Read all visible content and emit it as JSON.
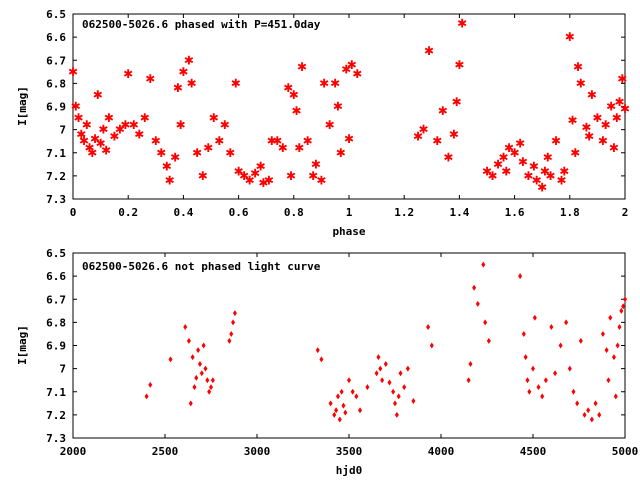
{
  "chart_data": [
    {
      "type": "scatter",
      "title": "062500-5026.6 phased with P=451.0day",
      "xlabel": "phase",
      "ylabel": "I[mag]",
      "xlim": [
        0,
        2
      ],
      "ylim": [
        6.5,
        7.3
      ],
      "y_inverted": true,
      "x_ticks": [
        "0",
        "0.2",
        "0.4",
        "0.6",
        "0.8",
        "1",
        "1.2",
        "1.4",
        "1.6",
        "1.8",
        "2"
      ],
      "y_ticks": [
        "6.5",
        "6.6",
        "6.7",
        "6.8",
        "6.9",
        "7",
        "7.1",
        "7.2",
        "7.3"
      ],
      "marker_color": "#ff0000",
      "marker": "star",
      "series": [
        {
          "points": [
            [
              0.0,
              6.75
            ],
            [
              0.01,
              6.9
            ],
            [
              0.02,
              6.95
            ],
            [
              0.03,
              7.02
            ],
            [
              0.04,
              7.05
            ],
            [
              0.05,
              6.98
            ],
            [
              0.06,
              7.08
            ],
            [
              0.07,
              7.1
            ],
            [
              0.08,
              7.04
            ],
            [
              0.09,
              6.85
            ],
            [
              0.1,
              7.06
            ],
            [
              0.11,
              7.0
            ],
            [
              0.12,
              7.09
            ],
            [
              0.13,
              6.95
            ],
            [
              0.15,
              7.03
            ],
            [
              0.17,
              7.0
            ],
            [
              0.19,
              6.98
            ],
            [
              0.2,
              6.76
            ],
            [
              0.22,
              6.98
            ],
            [
              0.24,
              7.02
            ],
            [
              0.26,
              6.95
            ],
            [
              0.28,
              6.78
            ],
            [
              0.3,
              7.05
            ],
            [
              0.32,
              7.1
            ],
            [
              0.34,
              7.16
            ],
            [
              0.35,
              7.22
            ],
            [
              0.37,
              7.12
            ],
            [
              0.38,
              6.82
            ],
            [
              0.39,
              6.98
            ],
            [
              0.4,
              6.75
            ],
            [
              0.42,
              6.7
            ],
            [
              0.43,
              6.8
            ],
            [
              0.45,
              7.1
            ],
            [
              0.47,
              7.2
            ],
            [
              0.49,
              7.08
            ],
            [
              0.51,
              6.95
            ],
            [
              0.53,
              7.05
            ],
            [
              0.55,
              6.98
            ],
            [
              0.57,
              7.1
            ],
            [
              0.59,
              6.8
            ],
            [
              0.6,
              7.18
            ],
            [
              0.62,
              7.2
            ],
            [
              0.64,
              7.22
            ],
            [
              0.66,
              7.19
            ],
            [
              0.68,
              7.16
            ],
            [
              0.69,
              7.23
            ],
            [
              0.71,
              7.22
            ],
            [
              0.72,
              7.05
            ],
            [
              0.74,
              7.05
            ],
            [
              0.76,
              7.08
            ],
            [
              0.78,
              6.82
            ],
            [
              0.79,
              7.2
            ],
            [
              0.8,
              6.85
            ],
            [
              0.81,
              6.92
            ],
            [
              0.82,
              7.08
            ],
            [
              0.83,
              6.73
            ],
            [
              0.85,
              7.05
            ],
            [
              0.87,
              7.2
            ],
            [
              0.88,
              7.15
            ],
            [
              0.9,
              7.22
            ],
            [
              0.91,
              6.8
            ],
            [
              0.93,
              6.98
            ],
            [
              0.95,
              6.8
            ],
            [
              0.96,
              6.9
            ],
            [
              0.97,
              7.1
            ],
            [
              0.99,
              6.74
            ],
            [
              1.0,
              7.04
            ],
            [
              1.01,
              6.72
            ],
            [
              1.03,
              6.76
            ],
            [
              1.25,
              7.03
            ],
            [
              1.27,
              7.0
            ],
            [
              1.29,
              6.66
            ],
            [
              1.32,
              7.05
            ],
            [
              1.34,
              6.92
            ],
            [
              1.36,
              7.12
            ],
            [
              1.38,
              7.02
            ],
            [
              1.39,
              6.88
            ],
            [
              1.4,
              6.72
            ],
            [
              1.41,
              6.54
            ],
            [
              1.5,
              7.18
            ],
            [
              1.52,
              7.2
            ],
            [
              1.54,
              7.15
            ],
            [
              1.56,
              7.12
            ],
            [
              1.57,
              7.18
            ],
            [
              1.58,
              7.08
            ],
            [
              1.6,
              7.1
            ],
            [
              1.62,
              7.06
            ],
            [
              1.63,
              7.14
            ],
            [
              1.65,
              7.2
            ],
            [
              1.67,
              7.16
            ],
            [
              1.68,
              7.22
            ],
            [
              1.7,
              7.25
            ],
            [
              1.71,
              7.18
            ],
            [
              1.72,
              7.12
            ],
            [
              1.73,
              7.2
            ],
            [
              1.75,
              7.05
            ],
            [
              1.77,
              7.22
            ],
            [
              1.78,
              7.18
            ],
            [
              1.8,
              6.6
            ],
            [
              1.81,
              6.96
            ],
            [
              1.82,
              7.1
            ],
            [
              1.83,
              6.73
            ],
            [
              1.84,
              6.8
            ],
            [
              1.86,
              6.99
            ],
            [
              1.87,
              7.03
            ],
            [
              1.88,
              6.85
            ],
            [
              1.9,
              6.95
            ],
            [
              1.92,
              7.05
            ],
            [
              1.93,
              6.98
            ],
            [
              1.95,
              6.9
            ],
            [
              1.96,
              7.08
            ],
            [
              1.97,
              6.95
            ],
            [
              1.98,
              6.88
            ],
            [
              1.99,
              6.78
            ],
            [
              2.0,
              6.91
            ]
          ]
        }
      ]
    },
    {
      "type": "scatter",
      "title": "062500-5026.6 not phased light curve",
      "xlabel": "hjd0",
      "ylabel": "I[mag]",
      "xlim": [
        2000,
        5000
      ],
      "ylim": [
        6.5,
        7.3
      ],
      "y_inverted": true,
      "x_ticks": [
        "2000",
        "2500",
        "3000",
        "3500",
        "4000",
        "4500",
        "5000"
      ],
      "y_ticks": [
        "6.5",
        "6.6",
        "6.7",
        "6.8",
        "6.9",
        "7",
        "7.1",
        "7.2",
        "7.3"
      ],
      "marker_color": "#ff0000",
      "marker": "diamond",
      "series": [
        {
          "points": [
            [
              2400,
              7.12
            ],
            [
              2420,
              7.07
            ],
            [
              2530,
              6.96
            ],
            [
              2610,
              6.82
            ],
            [
              2630,
              6.88
            ],
            [
              2650,
              6.95
            ],
            [
              2660,
              7.08
            ],
            [
              2670,
              7.04
            ],
            [
              2680,
              6.92
            ],
            [
              2690,
              6.98
            ],
            [
              2700,
              7.02
            ],
            [
              2710,
              6.9
            ],
            [
              2720,
              7.0
            ],
            [
              2730,
              7.05
            ],
            [
              2740,
              7.1
            ],
            [
              2750,
              7.08
            ],
            [
              2760,
              7.05
            ],
            [
              2640,
              7.15
            ],
            [
              2850,
              6.88
            ],
            [
              2860,
              6.85
            ],
            [
              2870,
              6.8
            ],
            [
              2880,
              6.76
            ],
            [
              3330,
              6.92
            ],
            [
              3350,
              6.96
            ],
            [
              3400,
              7.15
            ],
            [
              3420,
              7.2
            ],
            [
              3430,
              7.18
            ],
            [
              3440,
              7.12
            ],
            [
              3450,
              7.22
            ],
            [
              3460,
              7.1
            ],
            [
              3470,
              7.16
            ],
            [
              3480,
              7.19
            ],
            [
              3500,
              7.05
            ],
            [
              3520,
              7.1
            ],
            [
              3540,
              7.12
            ],
            [
              3560,
              7.18
            ],
            [
              3600,
              7.08
            ],
            [
              3650,
              7.02
            ],
            [
              3660,
              6.95
            ],
            [
              3670,
              7.0
            ],
            [
              3680,
              7.05
            ],
            [
              3700,
              6.98
            ],
            [
              3720,
              7.06
            ],
            [
              3740,
              7.1
            ],
            [
              3750,
              7.15
            ],
            [
              3760,
              7.2
            ],
            [
              3770,
              7.12
            ],
            [
              3780,
              7.02
            ],
            [
              3800,
              7.08
            ],
            [
              3820,
              7.0
            ],
            [
              3850,
              7.14
            ],
            [
              3930,
              6.82
            ],
            [
              3950,
              6.9
            ],
            [
              4150,
              7.05
            ],
            [
              4160,
              6.98
            ],
            [
              4180,
              6.65
            ],
            [
              4200,
              6.72
            ],
            [
              4230,
              6.55
            ],
            [
              4240,
              6.8
            ],
            [
              4260,
              6.88
            ],
            [
              4430,
              6.6
            ],
            [
              4450,
              6.85
            ],
            [
              4460,
              6.95
            ],
            [
              4470,
              7.05
            ],
            [
              4480,
              7.1
            ],
            [
              4500,
              7.0
            ],
            [
              4510,
              6.78
            ],
            [
              4530,
              7.08
            ],
            [
              4550,
              7.12
            ],
            [
              4570,
              7.05
            ],
            [
              4600,
              6.82
            ],
            [
              4620,
              7.02
            ],
            [
              4650,
              6.9
            ],
            [
              4680,
              6.8
            ],
            [
              4700,
              7.0
            ],
            [
              4720,
              7.1
            ],
            [
              4740,
              7.15
            ],
            [
              4760,
              6.88
            ],
            [
              4780,
              7.2
            ],
            [
              4800,
              7.18
            ],
            [
              4820,
              7.22
            ],
            [
              4840,
              7.15
            ],
            [
              4860,
              7.2
            ],
            [
              4880,
              6.85
            ],
            [
              4900,
              6.92
            ],
            [
              4910,
              7.05
            ],
            [
              4920,
              6.78
            ],
            [
              4940,
              6.95
            ],
            [
              4950,
              7.12
            ],
            [
              4960,
              6.9
            ],
            [
              4970,
              6.82
            ],
            [
              4980,
              6.75
            ],
            [
              4990,
              6.73
            ],
            [
              5000,
              6.7
            ]
          ]
        }
      ]
    }
  ]
}
